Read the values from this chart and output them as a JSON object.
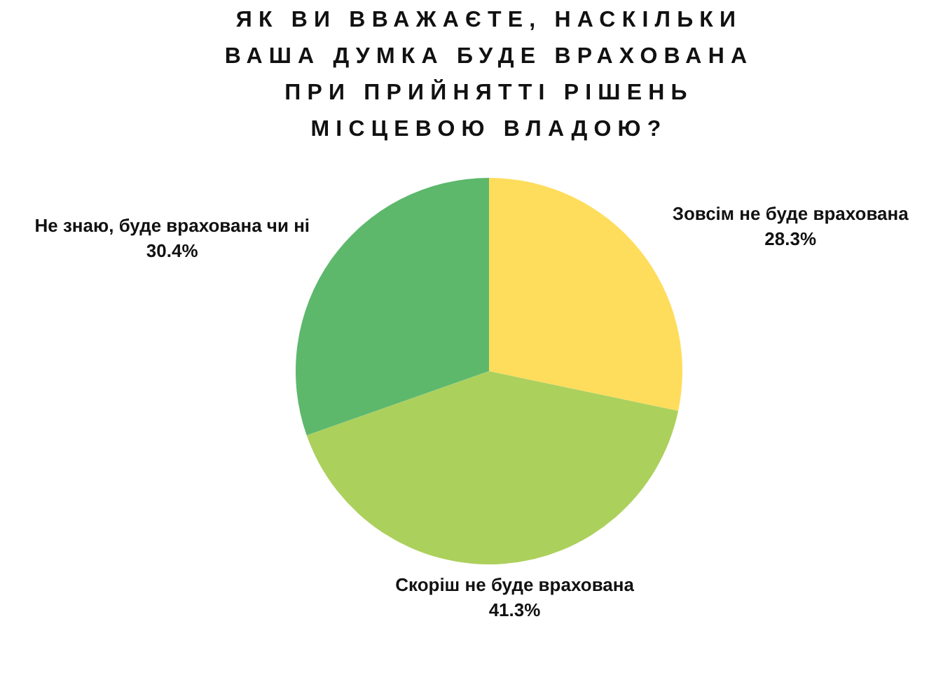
{
  "chart_data": {
    "type": "pie",
    "title": "ЯК ВИ ВВАЖАЄТЕ, НАСКІЛЬКИ\nВАША ДУМКА БУДЕ ВРАХОВАНА\nПРИ ПРИЙНЯТТІ РІШЕНЬ\nМІСЦЕВОЮ ВЛАДОЮ?",
    "categories": [
      "Зовсім не буде врахована",
      "Скоріш не буде врахована",
      "Не знаю, буде врахована чи ні"
    ],
    "values": [
      28.3,
      41.3,
      30.4
    ],
    "colors": [
      "#ffdd5c",
      "#acd05c",
      "#5db86c"
    ],
    "value_labels": [
      "28.3%",
      "41.3%",
      "30.4%"
    ],
    "legend": false
  }
}
